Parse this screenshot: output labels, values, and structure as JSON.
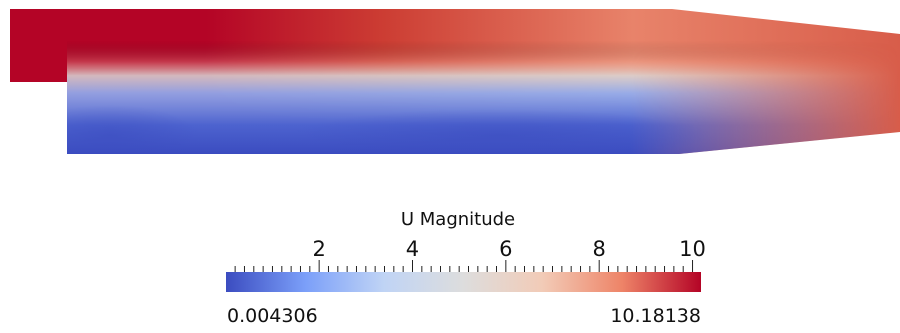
{
  "scene": {
    "field": "U Magnitude",
    "colormap": {
      "name": "Cool to Warm",
      "stops": [
        "#3b4cc0",
        "#7b9ff9",
        "#c0d4f5",
        "#dddddd",
        "#f2cbb7",
        "#ee8468",
        "#b40426"
      ]
    }
  },
  "legend": {
    "title": "U Magnitude",
    "range_min": 0.004306,
    "range_max": 10.18138,
    "min_label": "0.004306",
    "max_label": "10.18138",
    "tick_labels": [
      "2",
      "4",
      "6",
      "8",
      "10"
    ],
    "tick_values": [
      2,
      4,
      6,
      8,
      10
    ],
    "minor_tick_step": 0.2
  }
}
